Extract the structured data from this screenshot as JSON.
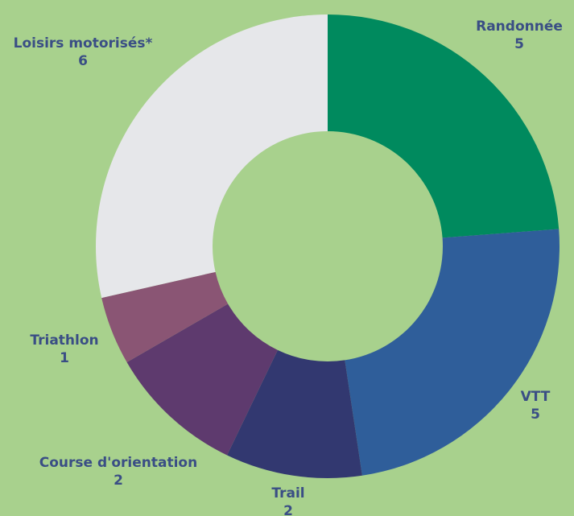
{
  "background_color": "#a8d18d",
  "chart_data": {
    "type": "pie",
    "donut": true,
    "title": "",
    "label_color": "#3a4e85",
    "slices": [
      {
        "label": "Randonnée",
        "value": 5,
        "color": "#008a5e"
      },
      {
        "label": "VTT",
        "value": 5,
        "color": "#2f5e9a"
      },
      {
        "label": "Trail",
        "value": 2,
        "color": "#323870"
      },
      {
        "label": "Course d'orientation",
        "value": 2,
        "color": "#5e3a6e"
      },
      {
        "label": "Triathlon",
        "value": 1,
        "color": "#8a5574"
      },
      {
        "label": "Loisirs motorisés*",
        "value": 6,
        "color": "#e6e7ea"
      }
    ]
  }
}
